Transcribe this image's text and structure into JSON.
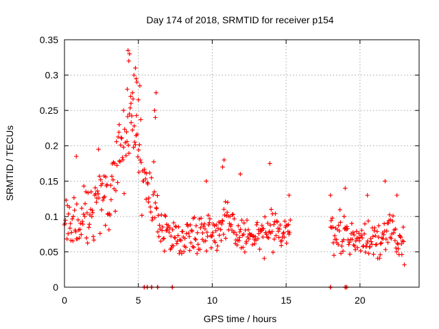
{
  "chart_data": {
    "type": "scatter",
    "title": "Day 174 of 2018, SRMTID for receiver p154",
    "xlabel": "GPS time / hours",
    "ylabel": "SRMTID / TECUs",
    "xlim": [
      0,
      24
    ],
    "ylim": [
      0,
      0.35
    ],
    "xticks": [
      0,
      5,
      10,
      15,
      20
    ],
    "xtick_labels": [
      "0",
      "5",
      "10",
      "15",
      "20"
    ],
    "yticks": [
      0,
      0.05,
      0.1,
      0.15,
      0.2,
      0.25,
      0.3,
      0.35
    ],
    "ytick_labels": [
      "0",
      "0.05",
      "0.1",
      "0.15",
      "0.2",
      "0.25",
      "0.3",
      "0.35"
    ],
    "grid": true,
    "marker": "+",
    "marker_color": "#ff0000",
    "series": [
      {
        "name": "SRMTID",
        "segments": [
          {
            "x_start": 0.0,
            "x_end": 15.3,
            "step": 0.04,
            "envelope": [
              [
                0.0,
                0.08,
                0.03
              ],
              [
                0.5,
                0.085,
                0.03
              ],
              [
                1.0,
                0.1,
                0.035
              ],
              [
                2.0,
                0.11,
                0.035
              ],
              [
                3.0,
                0.13,
                0.04
              ],
              [
                3.5,
                0.17,
                0.05
              ],
              [
                4.0,
                0.21,
                0.06
              ],
              [
                4.5,
                0.25,
                0.06
              ],
              [
                5.0,
                0.19,
                0.06
              ],
              [
                5.5,
                0.14,
                0.05
              ],
              [
                6.0,
                0.12,
                0.04
              ],
              [
                6.5,
                0.09,
                0.03
              ],
              [
                7.0,
                0.075,
                0.025
              ],
              [
                8.0,
                0.07,
                0.02
              ],
              [
                9.0,
                0.08,
                0.025
              ],
              [
                10.0,
                0.08,
                0.025
              ],
              [
                10.8,
                0.09,
                0.03
              ],
              [
                11.5,
                0.08,
                0.025
              ],
              [
                12.5,
                0.07,
                0.02
              ],
              [
                14.0,
                0.075,
                0.025
              ],
              [
                15.3,
                0.08,
                0.02
              ]
            ]
          },
          {
            "x_start": 18.0,
            "x_end": 23.0,
            "step": 0.04,
            "envelope": [
              [
                18.0,
                0.08,
                0.025
              ],
              [
                19.0,
                0.075,
                0.025
              ],
              [
                20.0,
                0.065,
                0.025
              ],
              [
                21.0,
                0.07,
                0.025
              ],
              [
                22.0,
                0.075,
                0.03
              ],
              [
                23.0,
                0.065,
                0.025
              ]
            ]
          }
        ],
        "peaks": [
          [
            4.3,
            0.335
          ],
          [
            4.4,
            0.33
          ],
          [
            4.35,
            0.32
          ],
          [
            4.8,
            0.31
          ],
          [
            4.85,
            0.295
          ],
          [
            4.9,
            0.29
          ],
          [
            4.7,
            0.3
          ],
          [
            5.1,
            0.285
          ],
          [
            5.0,
            0.265
          ],
          [
            4.6,
            0.275
          ],
          [
            6.2,
            0.275
          ],
          [
            6.1,
            0.25
          ],
          [
            6.15,
            0.24
          ],
          [
            4.25,
            0.28
          ],
          [
            4.5,
            0.26
          ],
          [
            4.0,
            0.25
          ],
          [
            3.7,
            0.23
          ],
          [
            0.8,
            0.185
          ],
          [
            2.3,
            0.195
          ],
          [
            13.9,
            0.175
          ],
          [
            10.8,
            0.18
          ],
          [
            10.7,
            0.17
          ],
          [
            11.9,
            0.16
          ],
          [
            9.6,
            0.15
          ],
          [
            21.7,
            0.15
          ],
          [
            15.2,
            0.13
          ],
          [
            18.0,
            0.13
          ],
          [
            19.0,
            0.14
          ],
          [
            20.5,
            0.13
          ],
          [
            22.5,
            0.13
          ]
        ],
        "zero_points": [
          5.4,
          5.6,
          5.9,
          6.3,
          7.3,
          18.0,
          19.0,
          19.1
        ]
      }
    ]
  }
}
